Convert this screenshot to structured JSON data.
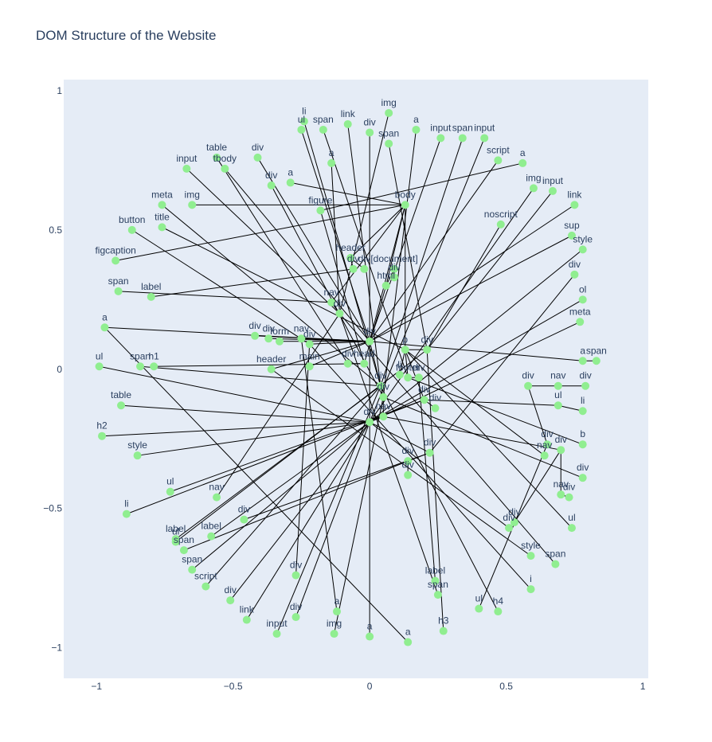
{
  "chart_data": {
    "type": "network",
    "title": "DOM Structure of the Website",
    "xlim": [
      -1.12,
      1.02
    ],
    "ylim": [
      -1.11,
      1.04
    ],
    "x_ticks": [
      -1,
      -0.5,
      0,
      0.5,
      1
    ],
    "x_tick_labels": [
      "−1",
      "−0.5",
      "0",
      "0.5",
      "1"
    ],
    "y_ticks": [
      -1,
      -0.5,
      0,
      0.5,
      1
    ],
    "y_tick_labels": [
      "−1",
      "−0.5",
      "0",
      "0.5",
      "1"
    ],
    "grid": false,
    "plot_bg": "#e5ecf6",
    "node_color": "#90ee90",
    "edge_color": "#000000",
    "nodes": [
      {
        "id": "n0",
        "label": "[document]",
        "x": 0.09,
        "y": 0.36
      },
      {
        "id": "n1",
        "label": "html",
        "x": 0.06,
        "y": 0.3
      },
      {
        "id": "n2",
        "label": "head",
        "x": -0.02,
        "y": 0.02
      },
      {
        "id": "n3",
        "label": "body",
        "x": 0.13,
        "y": 0.59
      },
      {
        "id": "n4",
        "label": "header",
        "x": -0.07,
        "y": 0.4
      },
      {
        "id": "n5",
        "label": "div",
        "x": -0.06,
        "y": 0.36
      },
      {
        "id": "n6",
        "label": "div",
        "x": -0.02,
        "y": 0.36
      },
      {
        "id": "n7",
        "label": "div",
        "x": 0.09,
        "y": 0.33
      },
      {
        "id": "n8",
        "label": "nav",
        "x": -0.14,
        "y": 0.24
      },
      {
        "id": "n9",
        "label": "div",
        "x": -0.11,
        "y": 0.2
      },
      {
        "id": "n10",
        "label": "div",
        "x": 0.0,
        "y": 0.1
      },
      {
        "id": "n11",
        "label": "p",
        "x": 0.13,
        "y": 0.07
      },
      {
        "id": "n12",
        "label": "div",
        "x": 0.21,
        "y": 0.07
      },
      {
        "id": "n13",
        "label": "div",
        "x": -0.42,
        "y": 0.12
      },
      {
        "id": "n14",
        "label": "div",
        "x": -0.37,
        "y": 0.11
      },
      {
        "id": "n15",
        "label": "form",
        "x": -0.33,
        "y": 0.1
      },
      {
        "id": "n16",
        "label": "nav",
        "x": -0.25,
        "y": 0.11
      },
      {
        "id": "n17",
        "label": "div",
        "x": -0.22,
        "y": 0.09
      },
      {
        "id": "n18",
        "label": "div",
        "x": -0.08,
        "y": 0.02
      },
      {
        "id": "n19",
        "label": "header",
        "x": -0.36,
        "y": 0.0
      },
      {
        "id": "n20",
        "label": "main",
        "x": -0.22,
        "y": 0.01
      },
      {
        "id": "n21",
        "label": "li",
        "x": 0.11,
        "y": -0.02
      },
      {
        "id": "n22",
        "label": "footer",
        "x": 0.14,
        "y": -0.03
      },
      {
        "id": "n23",
        "label": "div",
        "x": 0.18,
        "y": -0.03
      },
      {
        "id": "n24",
        "label": "div",
        "x": 0.04,
        "y": -0.06
      },
      {
        "id": "n25",
        "label": "div",
        "x": 0.05,
        "y": -0.1
      },
      {
        "id": "n26",
        "label": "nav",
        "x": 0.05,
        "y": -0.17
      },
      {
        "id": "n27",
        "label": "div",
        "x": 0.0,
        "y": -0.19
      },
      {
        "id": "n28",
        "label": "div",
        "x": 0.2,
        "y": -0.11
      },
      {
        "id": "n29",
        "label": "div",
        "x": 0.24,
        "y": -0.14
      },
      {
        "id": "n30",
        "label": "div",
        "x": 0.22,
        "y": -0.3
      },
      {
        "id": "n31",
        "label": "div",
        "x": 0.14,
        "y": -0.33
      },
      {
        "id": "n32",
        "label": "div",
        "x": 0.14,
        "y": -0.38
      },
      {
        "id": "n33",
        "label": "img",
        "x": 0.07,
        "y": 0.92
      },
      {
        "id": "n34",
        "label": "link",
        "x": -0.08,
        "y": 0.88
      },
      {
        "id": "n35",
        "label": "li",
        "x": -0.24,
        "y": 0.89
      },
      {
        "id": "n36",
        "label": "ul",
        "x": -0.25,
        "y": 0.86
      },
      {
        "id": "n37",
        "label": "span",
        "x": -0.17,
        "y": 0.86
      },
      {
        "id": "n38",
        "label": "div",
        "x": 0.0,
        "y": 0.85
      },
      {
        "id": "n39",
        "label": "span",
        "x": 0.07,
        "y": 0.81
      },
      {
        "id": "n40",
        "label": "a",
        "x": 0.17,
        "y": 0.86
      },
      {
        "id": "n41",
        "label": "input",
        "x": 0.26,
        "y": 0.83
      },
      {
        "id": "n42",
        "label": "span",
        "x": 0.34,
        "y": 0.83
      },
      {
        "id": "n43",
        "label": "input",
        "x": 0.42,
        "y": 0.83
      },
      {
        "id": "n44",
        "label": "script",
        "x": 0.47,
        "y": 0.75
      },
      {
        "id": "n45",
        "label": "a",
        "x": 0.56,
        "y": 0.74
      },
      {
        "id": "n46",
        "label": "img",
        "x": 0.6,
        "y": 0.65
      },
      {
        "id": "n47",
        "label": "input",
        "x": 0.67,
        "y": 0.64
      },
      {
        "id": "n48",
        "label": "link",
        "x": 0.75,
        "y": 0.59
      },
      {
        "id": "n49",
        "label": "noscript",
        "x": 0.48,
        "y": 0.52
      },
      {
        "id": "n50",
        "label": "sup",
        "x": 0.74,
        "y": 0.48
      },
      {
        "id": "n51",
        "label": "style",
        "x": 0.78,
        "y": 0.43
      },
      {
        "id": "n52",
        "label": "div",
        "x": 0.75,
        "y": 0.34
      },
      {
        "id": "n53",
        "label": "ol",
        "x": 0.78,
        "y": 0.25
      },
      {
        "id": "n54",
        "label": "meta",
        "x": 0.77,
        "y": 0.17
      },
      {
        "id": "n55",
        "label": "a",
        "x": 0.78,
        "y": 0.03
      },
      {
        "id": "n56",
        "label": "span",
        "x": 0.83,
        "y": 0.03
      },
      {
        "id": "n57",
        "label": "div",
        "x": 0.58,
        "y": -0.06
      },
      {
        "id": "n58",
        "label": "nav",
        "x": 0.69,
        "y": -0.06
      },
      {
        "id": "n59",
        "label": "div",
        "x": 0.79,
        "y": -0.06
      },
      {
        "id": "n60",
        "label": "ul",
        "x": 0.69,
        "y": -0.13
      },
      {
        "id": "n61",
        "label": "li",
        "x": 0.78,
        "y": -0.15
      },
      {
        "id": "n62",
        "label": "div",
        "x": 0.65,
        "y": -0.27
      },
      {
        "id": "n63",
        "label": "nav",
        "x": 0.64,
        "y": -0.31
      },
      {
        "id": "n64",
        "label": "b",
        "x": 0.78,
        "y": -0.27
      },
      {
        "id": "n65",
        "label": "div",
        "x": 0.7,
        "y": -0.29
      },
      {
        "id": "n66",
        "label": "div",
        "x": 0.78,
        "y": -0.39
      },
      {
        "id": "n67",
        "label": "nav",
        "x": 0.7,
        "y": -0.45
      },
      {
        "id": "n68",
        "label": "div",
        "x": 0.73,
        "y": -0.46
      },
      {
        "id": "n69",
        "label": "div",
        "x": 0.53,
        "y": -0.55
      },
      {
        "id": "n70",
        "label": "div",
        "x": 0.51,
        "y": -0.57
      },
      {
        "id": "n71",
        "label": "ul",
        "x": 0.74,
        "y": -0.57
      },
      {
        "id": "n72",
        "label": "style",
        "x": 0.59,
        "y": -0.67
      },
      {
        "id": "n73",
        "label": "span",
        "x": 0.68,
        "y": -0.7
      },
      {
        "id": "n74",
        "label": "i",
        "x": 0.59,
        "y": -0.79
      },
      {
        "id": "n75",
        "label": "ul",
        "x": 0.4,
        "y": -0.86
      },
      {
        "id": "n76",
        "label": "h4",
        "x": 0.47,
        "y": -0.87
      },
      {
        "id": "n77",
        "label": "label",
        "x": 0.24,
        "y": -0.76
      },
      {
        "id": "n78",
        "label": "span",
        "x": 0.25,
        "y": -0.81
      },
      {
        "id": "n79",
        "label": "h3",
        "x": 0.27,
        "y": -0.94
      },
      {
        "id": "n80",
        "label": "a",
        "x": 0.14,
        "y": -0.98
      },
      {
        "id": "n81",
        "label": "a",
        "x": 0.0,
        "y": -0.96
      },
      {
        "id": "n82",
        "label": "a",
        "x": -0.12,
        "y": -0.87
      },
      {
        "id": "n83",
        "label": "img",
        "x": -0.13,
        "y": -0.95
      },
      {
        "id": "n84",
        "label": "div",
        "x": -0.27,
        "y": -0.74
      },
      {
        "id": "n85",
        "label": "div",
        "x": -0.27,
        "y": -0.89
      },
      {
        "id": "n86",
        "label": "input",
        "x": -0.34,
        "y": -0.95
      },
      {
        "id": "n87",
        "label": "link",
        "x": -0.45,
        "y": -0.9
      },
      {
        "id": "n88",
        "label": "div",
        "x": -0.51,
        "y": -0.83
      },
      {
        "id": "n89",
        "label": "script",
        "x": -0.6,
        "y": -0.78
      },
      {
        "id": "n90",
        "label": "span",
        "x": -0.65,
        "y": -0.72
      },
      {
        "id": "n91",
        "label": "span",
        "x": -0.68,
        "y": -0.65
      },
      {
        "id": "n92",
        "label": "ul",
        "x": -0.71,
        "y": -0.62
      },
      {
        "id": "n93",
        "label": "label",
        "x": -0.71,
        "y": -0.61
      },
      {
        "id": "n94",
        "label": "label",
        "x": -0.58,
        "y": -0.6
      },
      {
        "id": "n95",
        "label": "nav",
        "x": -0.56,
        "y": -0.46
      },
      {
        "id": "n96",
        "label": "div",
        "x": -0.46,
        "y": -0.54
      },
      {
        "id": "n97",
        "label": "ul",
        "x": -0.73,
        "y": -0.44
      },
      {
        "id": "n98",
        "label": "li",
        "x": -0.89,
        "y": -0.52
      },
      {
        "id": "n99",
        "label": "style",
        "x": -0.85,
        "y": -0.31
      },
      {
        "id": "n100",
        "label": "h2",
        "x": -0.98,
        "y": -0.24
      },
      {
        "id": "n101",
        "label": "table",
        "x": -0.91,
        "y": -0.13
      },
      {
        "id": "n102",
        "label": "ul",
        "x": -0.99,
        "y": 0.01
      },
      {
        "id": "n103",
        "label": "span",
        "x": -0.84,
        "y": 0.01
      },
      {
        "id": "n104",
        "label": "h1",
        "x": -0.79,
        "y": 0.01
      },
      {
        "id": "n105",
        "label": "a",
        "x": -0.97,
        "y": 0.15
      },
      {
        "id": "n106",
        "label": "span",
        "x": -0.92,
        "y": 0.28
      },
      {
        "id": "n107",
        "label": "label",
        "x": -0.8,
        "y": 0.26
      },
      {
        "id": "n108",
        "label": "figcaption",
        "x": -0.93,
        "y": 0.39
      },
      {
        "id": "n109",
        "label": "button",
        "x": -0.87,
        "y": 0.5
      },
      {
        "id": "n110",
        "label": "title",
        "x": -0.76,
        "y": 0.51
      },
      {
        "id": "n111",
        "label": "meta",
        "x": -0.76,
        "y": 0.59
      },
      {
        "id": "n112",
        "label": "img",
        "x": -0.65,
        "y": 0.59
      },
      {
        "id": "n113",
        "label": "input",
        "x": -0.67,
        "y": 0.72
      },
      {
        "id": "n114",
        "label": "table",
        "x": -0.56,
        "y": 0.76
      },
      {
        "id": "n115",
        "label": "tbody",
        "x": -0.53,
        "y": 0.72
      },
      {
        "id": "n116",
        "label": "div",
        "x": -0.41,
        "y": 0.76
      },
      {
        "id": "n117",
        "label": "div",
        "x": -0.36,
        "y": 0.66
      },
      {
        "id": "n118",
        "label": "a",
        "x": -0.29,
        "y": 0.67
      },
      {
        "id": "n119",
        "label": "a",
        "x": -0.14,
        "y": 0.74
      },
      {
        "id": "n120",
        "label": "figure",
        "x": -0.18,
        "y": 0.57
      }
    ],
    "edges": [
      [
        "n0",
        "n1"
      ],
      [
        "n1",
        "n2"
      ],
      [
        "n1",
        "n3"
      ],
      [
        "n3",
        "n4"
      ],
      [
        "n4",
        "n5"
      ],
      [
        "n4",
        "n6"
      ],
      [
        "n0",
        "n7"
      ],
      [
        "n3",
        "n8"
      ],
      [
        "n8",
        "n9"
      ],
      [
        "n3",
        "n10"
      ],
      [
        "n3",
        "n11"
      ],
      [
        "n11",
        "n12"
      ],
      [
        "n10",
        "n13"
      ],
      [
        "n10",
        "n14"
      ],
      [
        "n10",
        "n15"
      ],
      [
        "n10",
        "n16"
      ],
      [
        "n10",
        "n17"
      ],
      [
        "n2",
        "n18"
      ],
      [
        "n10",
        "n19"
      ],
      [
        "n10",
        "n20"
      ],
      [
        "n11",
        "n21"
      ],
      [
        "n11",
        "n22"
      ],
      [
        "n22",
        "n23"
      ],
      [
        "n10",
        "n24"
      ],
      [
        "n24",
        "n25"
      ],
      [
        "n25",
        "n26"
      ],
      [
        "n26",
        "n27"
      ],
      [
        "n11",
        "n28"
      ],
      [
        "n28",
        "n29"
      ],
      [
        "n27",
        "n30"
      ],
      [
        "n30",
        "n31"
      ],
      [
        "n31",
        "n32"
      ],
      [
        "n9",
        "n33"
      ],
      [
        "n24",
        "n34"
      ],
      [
        "n24",
        "n35"
      ],
      [
        "n10",
        "n36"
      ],
      [
        "n22",
        "n37"
      ],
      [
        "n10",
        "n38"
      ],
      [
        "n12",
        "n39"
      ],
      [
        "n25",
        "n40"
      ],
      [
        "n10",
        "n41"
      ],
      [
        "n24",
        "n42"
      ],
      [
        "n27",
        "n43"
      ],
      [
        "n10",
        "n44"
      ],
      [
        "n120",
        "n45"
      ],
      [
        "n27",
        "n46"
      ],
      [
        "n12",
        "n47"
      ],
      [
        "n10",
        "n48"
      ],
      [
        "n12",
        "n49"
      ],
      [
        "n10",
        "n50"
      ],
      [
        "n27",
        "n51"
      ],
      [
        "n30",
        "n52"
      ],
      [
        "n27",
        "n53"
      ],
      [
        "n27",
        "n54"
      ],
      [
        "n10",
        "n55"
      ],
      [
        "n55",
        "n56"
      ],
      [
        "n57",
        "n58"
      ],
      [
        "n58",
        "n59"
      ],
      [
        "n28",
        "n60"
      ],
      [
        "n60",
        "n61"
      ],
      [
        "n57",
        "n62"
      ],
      [
        "n11",
        "n63"
      ],
      [
        "n22",
        "n64"
      ],
      [
        "n26",
        "n65"
      ],
      [
        "n25",
        "n66"
      ],
      [
        "n65",
        "n67"
      ],
      [
        "n67",
        "n68"
      ],
      [
        "n65",
        "n69"
      ],
      [
        "n27",
        "n70"
      ],
      [
        "n11",
        "n71"
      ],
      [
        "n19",
        "n72"
      ],
      [
        "n9",
        "n73"
      ],
      [
        "n17",
        "n74"
      ],
      [
        "n62",
        "n75"
      ],
      [
        "n24",
        "n76"
      ],
      [
        "n23",
        "n77"
      ],
      [
        "n9",
        "n78"
      ],
      [
        "n12",
        "n79"
      ],
      [
        "n105",
        "n80"
      ],
      [
        "n10",
        "n81"
      ],
      [
        "n16",
        "n82"
      ],
      [
        "n25",
        "n83"
      ],
      [
        "n17",
        "n84"
      ],
      [
        "n27",
        "n85"
      ],
      [
        "n24",
        "n86"
      ],
      [
        "n27",
        "n87"
      ],
      [
        "n27",
        "n88"
      ],
      [
        "n24",
        "n89"
      ],
      [
        "n27",
        "n90"
      ],
      [
        "n31",
        "n91"
      ],
      [
        "n12",
        "n92"
      ],
      [
        "n24",
        "n93"
      ],
      [
        "n27",
        "n94"
      ],
      [
        "n9",
        "n95"
      ],
      [
        "n30",
        "n96"
      ],
      [
        "n28",
        "n97"
      ],
      [
        "n28",
        "n98"
      ],
      [
        "n27",
        "n99"
      ],
      [
        "n27",
        "n100"
      ],
      [
        "n27",
        "n101"
      ],
      [
        "n27",
        "n102"
      ],
      [
        "n24",
        "n103"
      ],
      [
        "n2",
        "n104"
      ],
      [
        "n10",
        "n105"
      ],
      [
        "n8",
        "n106"
      ],
      [
        "n5",
        "n107"
      ],
      [
        "n3",
        "n108"
      ],
      [
        "n17",
        "n109"
      ],
      [
        "n11",
        "n110"
      ],
      [
        "n24",
        "n111"
      ],
      [
        "n3",
        "n112"
      ],
      [
        "n9",
        "n113"
      ],
      [
        "n18",
        "n114"
      ],
      [
        "n10",
        "n115"
      ],
      [
        "n10",
        "n116"
      ],
      [
        "n25",
        "n117"
      ],
      [
        "n3",
        "n118"
      ],
      [
        "n9",
        "n119"
      ],
      [
        "n2",
        "n120"
      ]
    ]
  }
}
